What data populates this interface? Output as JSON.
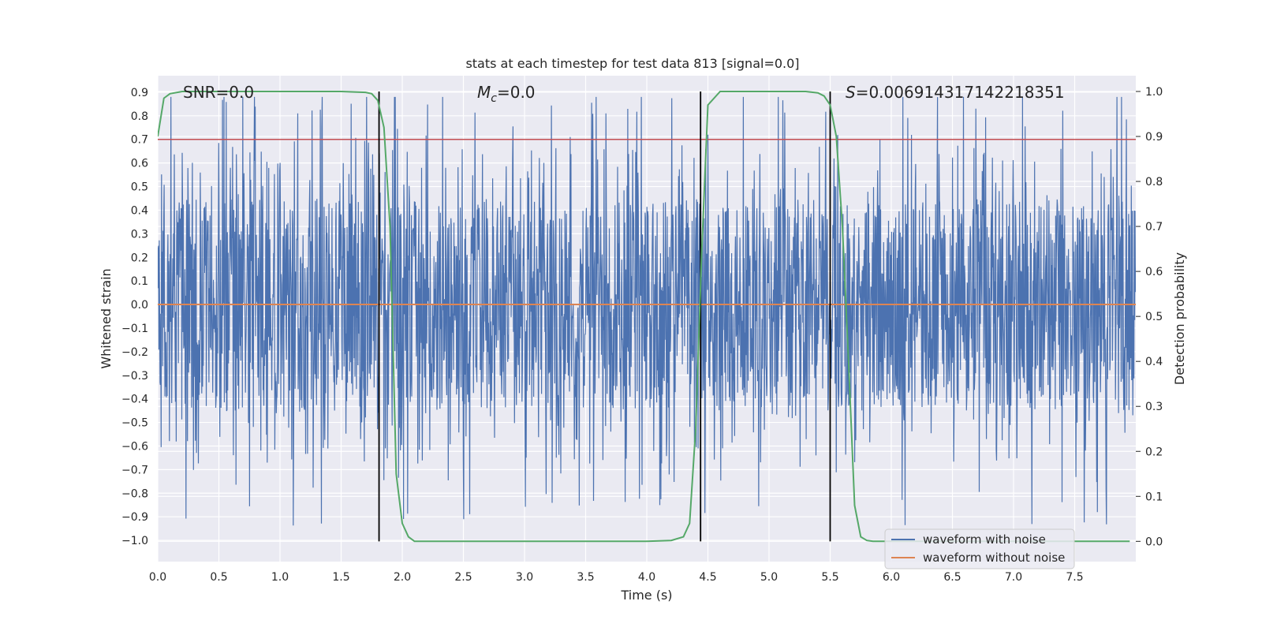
{
  "chart_data": {
    "type": "line",
    "title": "stats at each timestep for test data 813 [signal=0.0]",
    "xlabel": "Time (s)",
    "ylabel": "Whitened strain",
    "y2label": "Detection probability",
    "xlim": [
      0.0,
      8.0
    ],
    "ylim": [
      -1.09,
      0.97
    ],
    "y2lim": [
      -0.045,
      1.035
    ],
    "grid": true,
    "x_ticks": [
      "0.0",
      "0.5",
      "1.0",
      "1.5",
      "2.0",
      "2.5",
      "3.0",
      "3.5",
      "4.0",
      "4.5",
      "5.0",
      "5.5",
      "6.0",
      "6.5",
      "7.0",
      "7.5"
    ],
    "y_ticks": [
      "0.9",
      "0.8",
      "0.7",
      "0.6",
      "0.5",
      "0.4",
      "0.3",
      "0.2",
      "0.1",
      "0.0",
      "−0.1",
      "−0.2",
      "−0.3",
      "−0.4",
      "−0.5",
      "−0.6",
      "−0.7",
      "−0.8",
      "−0.9",
      "−1.0"
    ],
    "y2_ticks": [
      "1.0",
      "0.9",
      "0.8",
      "0.7",
      "0.6",
      "0.5",
      "0.4",
      "0.3",
      "0.2",
      "0.1",
      "0.0"
    ],
    "annotations": {
      "snr": "SNR=0.0",
      "mc_symbol": "M",
      "mc_sub": "c",
      "mc_value": "=0.0",
      "s_symbol": "S",
      "s_value": "=0.006914317142218351"
    },
    "series": [
      {
        "name": "waveform with noise",
        "color": "#4c72b0",
        "kind": "noise",
        "amplitude_range": [
          -1.0,
          0.88
        ]
      },
      {
        "name": "waveform without noise",
        "color": "#dd8452",
        "kind": "constant",
        "value": 0.0
      },
      {
        "name": "threshold",
        "color": "#c44e52",
        "kind": "hline",
        "value": 0.7,
        "axis": "right",
        "value_right": 0.9
      },
      {
        "name": "detection probability",
        "color": "#55a868",
        "axis": "right",
        "x": [
          0.0,
          0.05,
          0.1,
          0.2,
          0.5,
          1.0,
          1.5,
          1.7,
          1.75,
          1.8,
          1.85,
          1.9,
          1.95,
          2.0,
          2.05,
          2.1,
          2.5,
          3.0,
          3.5,
          4.0,
          4.2,
          4.3,
          4.35,
          4.4,
          4.45,
          4.5,
          4.6,
          5.0,
          5.3,
          5.4,
          5.45,
          5.5,
          5.55,
          5.6,
          5.65,
          5.7,
          5.75,
          5.8,
          5.85,
          6.0,
          7.0,
          7.95
        ],
        "values": [
          0.9,
          0.985,
          0.995,
          1.0,
          1.0,
          1.0,
          1.0,
          0.998,
          0.995,
          0.98,
          0.92,
          0.7,
          0.15,
          0.04,
          0.01,
          0.0,
          0.0,
          0.0,
          0.0,
          0.0,
          0.002,
          0.01,
          0.04,
          0.25,
          0.65,
          0.97,
          1.0,
          1.0,
          1.0,
          0.997,
          0.99,
          0.97,
          0.9,
          0.7,
          0.4,
          0.08,
          0.01,
          0.002,
          0.0,
          0.0,
          0.0,
          0.0
        ]
      }
    ],
    "vlines": [
      1.81,
      4.44,
      5.5
    ],
    "legend": {
      "placement": "lower-right",
      "entries": [
        "waveform with noise",
        "waveform without noise"
      ]
    }
  }
}
